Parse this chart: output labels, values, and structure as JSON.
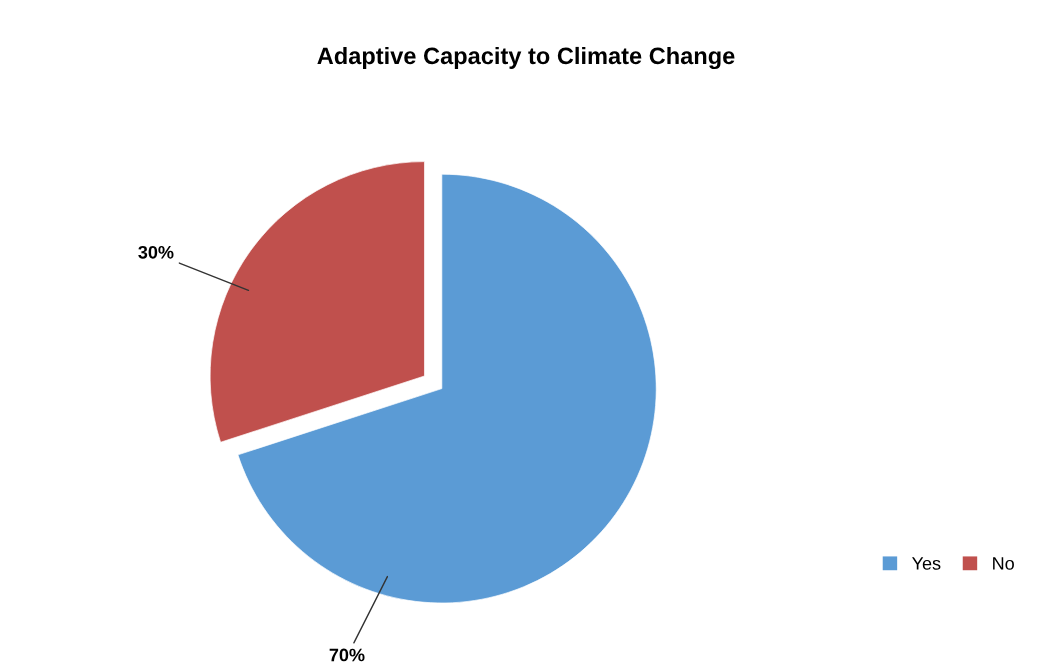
{
  "chart_data": {
    "type": "pie",
    "title": "Adaptive Capacity to Climate Change",
    "categories": [
      "Yes",
      "No"
    ],
    "values": [
      70,
      30
    ],
    "colors": [
      "#5b9bd5",
      "#c0504d"
    ],
    "value_labels": [
      "70%",
      "30%"
    ],
    "legend": "bottom right"
  }
}
